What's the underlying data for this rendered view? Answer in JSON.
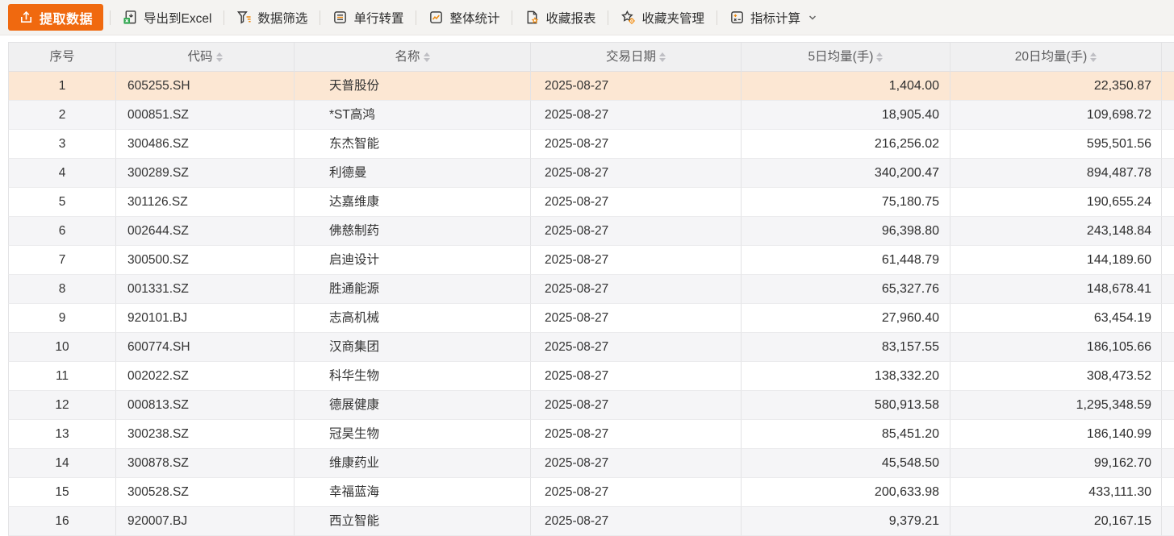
{
  "toolbar": {
    "primary_button": {
      "name": "extract-data-button",
      "label": "提取数据",
      "icon": "extract-icon"
    },
    "items": [
      {
        "name": "export-to-excel-button",
        "label": "导出到Excel",
        "icon": "excel-export-icon"
      },
      {
        "name": "data-filter-button",
        "label": "数据筛选",
        "icon": "filter-icon"
      },
      {
        "name": "row-transpose-button",
        "label": "单行转置",
        "icon": "transpose-icon"
      },
      {
        "name": "overall-stats-button",
        "label": "整体统计",
        "icon": "stats-icon"
      },
      {
        "name": "favorite-report-button",
        "label": "收藏报表",
        "icon": "favorite-report-icon"
      },
      {
        "name": "favorites-manage-button",
        "label": "收藏夹管理",
        "icon": "favorites-manage-icon"
      },
      {
        "name": "indicator-calc-button",
        "label": "指标计算",
        "icon": "indicator-calc-icon",
        "has_dropdown": true
      }
    ]
  },
  "table": {
    "columns": [
      {
        "key": "index",
        "label": "序号",
        "sortable": false
      },
      {
        "key": "code",
        "label": "代码",
        "sortable": true
      },
      {
        "key": "name",
        "label": "名称",
        "sortable": true
      },
      {
        "key": "date",
        "label": "交易日期",
        "sortable": true
      },
      {
        "key": "avg5",
        "label": "5日均量(手)",
        "sortable": true
      },
      {
        "key": "avg20",
        "label": "20日均量(手)",
        "sortable": true
      }
    ],
    "selected_row_index": 1,
    "rows": [
      {
        "index": "1",
        "code": "605255.SH",
        "name": "天普股份",
        "date": "2025-08-27",
        "avg5": "1,404.00",
        "avg20": "22,350.87"
      },
      {
        "index": "2",
        "code": "000851.SZ",
        "name": "*ST高鸿",
        "date": "2025-08-27",
        "avg5": "18,905.40",
        "avg20": "109,698.72"
      },
      {
        "index": "3",
        "code": "300486.SZ",
        "name": "东杰智能",
        "date": "2025-08-27",
        "avg5": "216,256.02",
        "avg20": "595,501.56"
      },
      {
        "index": "4",
        "code": "300289.SZ",
        "name": "利德曼",
        "date": "2025-08-27",
        "avg5": "340,200.47",
        "avg20": "894,487.78"
      },
      {
        "index": "5",
        "code": "301126.SZ",
        "name": "达嘉维康",
        "date": "2025-08-27",
        "avg5": "75,180.75",
        "avg20": "190,655.24"
      },
      {
        "index": "6",
        "code": "002644.SZ",
        "name": "佛慈制药",
        "date": "2025-08-27",
        "avg5": "96,398.80",
        "avg20": "243,148.84"
      },
      {
        "index": "7",
        "code": "300500.SZ",
        "name": "启迪设计",
        "date": "2025-08-27",
        "avg5": "61,448.79",
        "avg20": "144,189.60"
      },
      {
        "index": "8",
        "code": "001331.SZ",
        "name": "胜通能源",
        "date": "2025-08-27",
        "avg5": "65,327.76",
        "avg20": "148,678.41"
      },
      {
        "index": "9",
        "code": "920101.BJ",
        "name": "志高机械",
        "date": "2025-08-27",
        "avg5": "27,960.40",
        "avg20": "63,454.19"
      },
      {
        "index": "10",
        "code": "600774.SH",
        "name": "汉商集团",
        "date": "2025-08-27",
        "avg5": "83,157.55",
        "avg20": "186,105.66"
      },
      {
        "index": "11",
        "code": "002022.SZ",
        "name": "科华生物",
        "date": "2025-08-27",
        "avg5": "138,332.20",
        "avg20": "308,473.52"
      },
      {
        "index": "12",
        "code": "000813.SZ",
        "name": "德展健康",
        "date": "2025-08-27",
        "avg5": "580,913.58",
        "avg20": "1,295,348.59"
      },
      {
        "index": "13",
        "code": "300238.SZ",
        "name": "冠昊生物",
        "date": "2025-08-27",
        "avg5": "85,451.20",
        "avg20": "186,140.99"
      },
      {
        "index": "14",
        "code": "300878.SZ",
        "name": "维康药业",
        "date": "2025-08-27",
        "avg5": "45,548.50",
        "avg20": "99,162.70"
      },
      {
        "index": "15",
        "code": "300528.SZ",
        "name": "幸福蓝海",
        "date": "2025-08-27",
        "avg5": "200,633.98",
        "avg20": "433,111.30"
      },
      {
        "index": "16",
        "code": "920007.BJ",
        "name": "西立智能",
        "date": "2025-08-27",
        "avg5": "9,379.21",
        "avg20": "20,167.15"
      }
    ]
  },
  "colors": {
    "accent_orange": "#f0690f",
    "icon_orange": "#ef8a0e",
    "icon_green": "#33a852",
    "selected_row_bg": "#fce7d3",
    "even_row_bg": "#f5f5f7",
    "header_bg": "#f0f0f1",
    "toolbar_bg": "#f4f3f1"
  }
}
